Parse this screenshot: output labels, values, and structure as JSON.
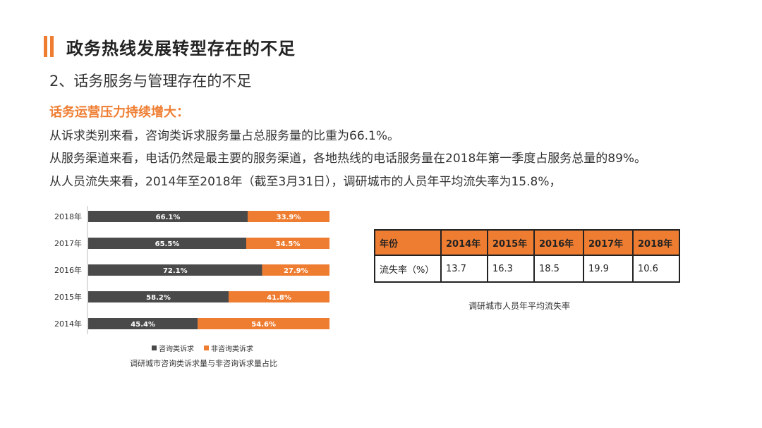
{
  "header": {
    "title": "政务热线发展转型存在的不足",
    "subtitle": "2、话务服务与管理存在的不足",
    "section": "话务运营压力持续增大：",
    "paragraphs": [
      "从诉求类别来看，咨询类诉求服务量占总服务量的比重为66.1%。",
      "从服务渠道来看，电话仍然是最主要的服务渠道，各地热线的电话服务量在2018年第一季度占服务总量的89%。",
      "从人员流失来看，2014年至2018年（截至3月31日），调研城市的人员年平均流失率为15.8%，"
    ]
  },
  "colors": {
    "accent": "#ef7d31",
    "dark": "#4a4a4a"
  },
  "chart_data": {
    "type": "bar",
    "orientation": "horizontal",
    "stacked": true,
    "percent_stacked": true,
    "categories": [
      "2018年",
      "2017年",
      "2016年",
      "2015年",
      "2014年"
    ],
    "series": [
      {
        "name": "咨询类诉求",
        "color": "#4a4a4a",
        "values": [
          66.1,
          65.5,
          72.1,
          58.2,
          45.4
        ],
        "labels": [
          "66.1%",
          "65.5%",
          "72.1%",
          "58.2%",
          "45.4%"
        ]
      },
      {
        "name": "非咨询类诉求",
        "color": "#ef7d31",
        "values": [
          33.9,
          34.5,
          27.9,
          41.8,
          54.6
        ],
        "labels": [
          "33.9%",
          "34.5%",
          "27.9%",
          "41.8%",
          "54.6%"
        ]
      }
    ],
    "xlim": [
      0,
      100
    ],
    "caption": "调研城市咨询类诉求量与非咨询诉求量占比",
    "legend_position": "bottom"
  },
  "table": {
    "header": [
      "年份",
      "2014年",
      "2015年",
      "2016年",
      "2017年",
      "2018年"
    ],
    "row": [
      "流失率（%）",
      "13.7",
      "16.3",
      "18.5",
      "19.9",
      "10.6"
    ],
    "caption": "调研城市人员年平均流失率"
  }
}
